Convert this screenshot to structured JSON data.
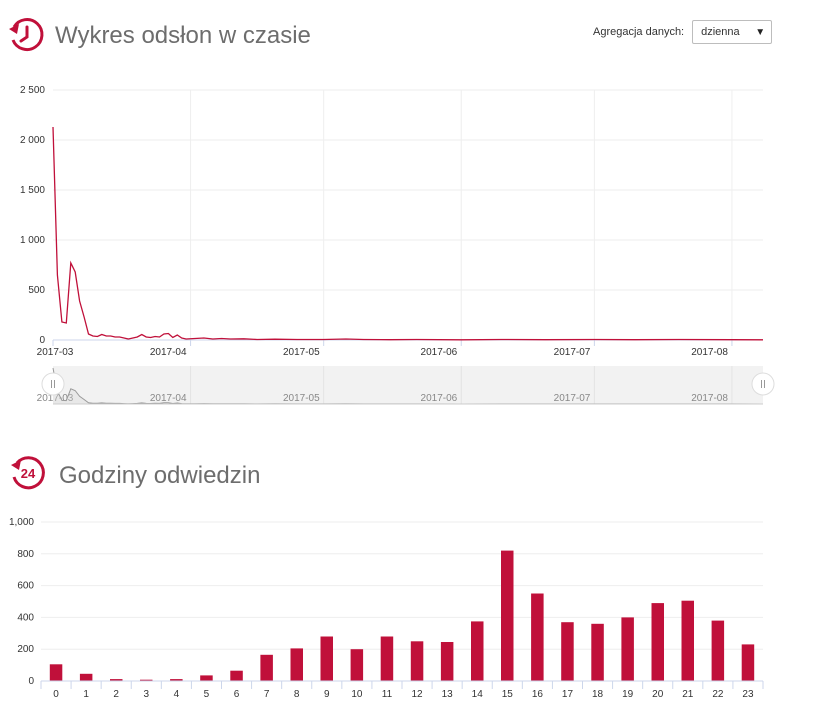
{
  "header1": {
    "title": "Wykres odsłon w czasie",
    "icon": "clock-history-icon"
  },
  "aggregation": {
    "label": "Agregacja danych:",
    "value": "dzienna"
  },
  "header2": {
    "title": "Godziny odwiedzin",
    "icon": "24-hours-icon"
  },
  "colors": {
    "accent": "#c0103a",
    "navigator": "#9a9a9a"
  },
  "chart_data": [
    {
      "type": "line",
      "title": "Wykres odsłon w czasie",
      "x_ticks": [
        "2017-03",
        "2017-04",
        "2017-05",
        "2017-06",
        "2017-07",
        "2017-08"
      ],
      "y_ticks": [
        "0",
        "500",
        "1 000",
        "1 500",
        "2 000",
        "2 500"
      ],
      "ylim": [
        0,
        2500
      ],
      "grid": true,
      "x_start": "2017-03-01",
      "x_end": "2017-08-08",
      "x_tick_dates": [
        "2017-03-01",
        "2017-04-01",
        "2017-05-01",
        "2017-06-01",
        "2017-07-01",
        "2017-08-01"
      ],
      "points": [
        [
          "2017-03-01",
          2130
        ],
        [
          "2017-03-02",
          650
        ],
        [
          "2017-03-03",
          180
        ],
        [
          "2017-03-04",
          170
        ],
        [
          "2017-03-05",
          770
        ],
        [
          "2017-03-06",
          680
        ],
        [
          "2017-03-07",
          390
        ],
        [
          "2017-03-08",
          230
        ],
        [
          "2017-03-09",
          60
        ],
        [
          "2017-03-10",
          40
        ],
        [
          "2017-03-11",
          35
        ],
        [
          "2017-03-12",
          55
        ],
        [
          "2017-03-13",
          40
        ],
        [
          "2017-03-14",
          40
        ],
        [
          "2017-03-15",
          30
        ],
        [
          "2017-03-16",
          30
        ],
        [
          "2017-03-17",
          20
        ],
        [
          "2017-03-18",
          10
        ],
        [
          "2017-03-19",
          20
        ],
        [
          "2017-03-20",
          30
        ],
        [
          "2017-03-21",
          55
        ],
        [
          "2017-03-22",
          30
        ],
        [
          "2017-03-23",
          25
        ],
        [
          "2017-03-24",
          35
        ],
        [
          "2017-03-25",
          30
        ],
        [
          "2017-03-26",
          60
        ],
        [
          "2017-03-27",
          65
        ],
        [
          "2017-03-28",
          25
        ],
        [
          "2017-03-29",
          50
        ],
        [
          "2017-03-30",
          20
        ],
        [
          "2017-03-31",
          10
        ],
        [
          "2017-04-02",
          15
        ],
        [
          "2017-04-04",
          20
        ],
        [
          "2017-04-06",
          10
        ],
        [
          "2017-04-08",
          15
        ],
        [
          "2017-04-10",
          10
        ],
        [
          "2017-04-13",
          12
        ],
        [
          "2017-04-16",
          5
        ],
        [
          "2017-04-20",
          8
        ],
        [
          "2017-04-25",
          5
        ],
        [
          "2017-05-01",
          5
        ],
        [
          "2017-05-06",
          10
        ],
        [
          "2017-05-10",
          5
        ],
        [
          "2017-05-16",
          3
        ],
        [
          "2017-05-22",
          5
        ],
        [
          "2017-06-01",
          2
        ],
        [
          "2017-06-10",
          5
        ],
        [
          "2017-06-20",
          3
        ],
        [
          "2017-07-01",
          5
        ],
        [
          "2017-07-10",
          3
        ],
        [
          "2017-07-20",
          5
        ],
        [
          "2017-08-01",
          3
        ],
        [
          "2017-08-08",
          2
        ]
      ]
    },
    {
      "type": "bar",
      "title": "Godziny odwiedzin",
      "categories": [
        "0",
        "1",
        "2",
        "3",
        "4",
        "5",
        "6",
        "7",
        "8",
        "9",
        "10",
        "11",
        "12",
        "13",
        "14",
        "15",
        "16",
        "17",
        "18",
        "19",
        "20",
        "21",
        "22",
        "23"
      ],
      "values": [
        105,
        45,
        12,
        8,
        12,
        35,
        65,
        165,
        205,
        280,
        200,
        280,
        250,
        245,
        375,
        820,
        550,
        370,
        360,
        400,
        490,
        505,
        380,
        230
      ],
      "y_ticks": [
        "0",
        "200",
        "400",
        "600",
        "800",
        "1,000"
      ],
      "ylim": [
        0,
        1000
      ],
      "grid": true
    }
  ]
}
